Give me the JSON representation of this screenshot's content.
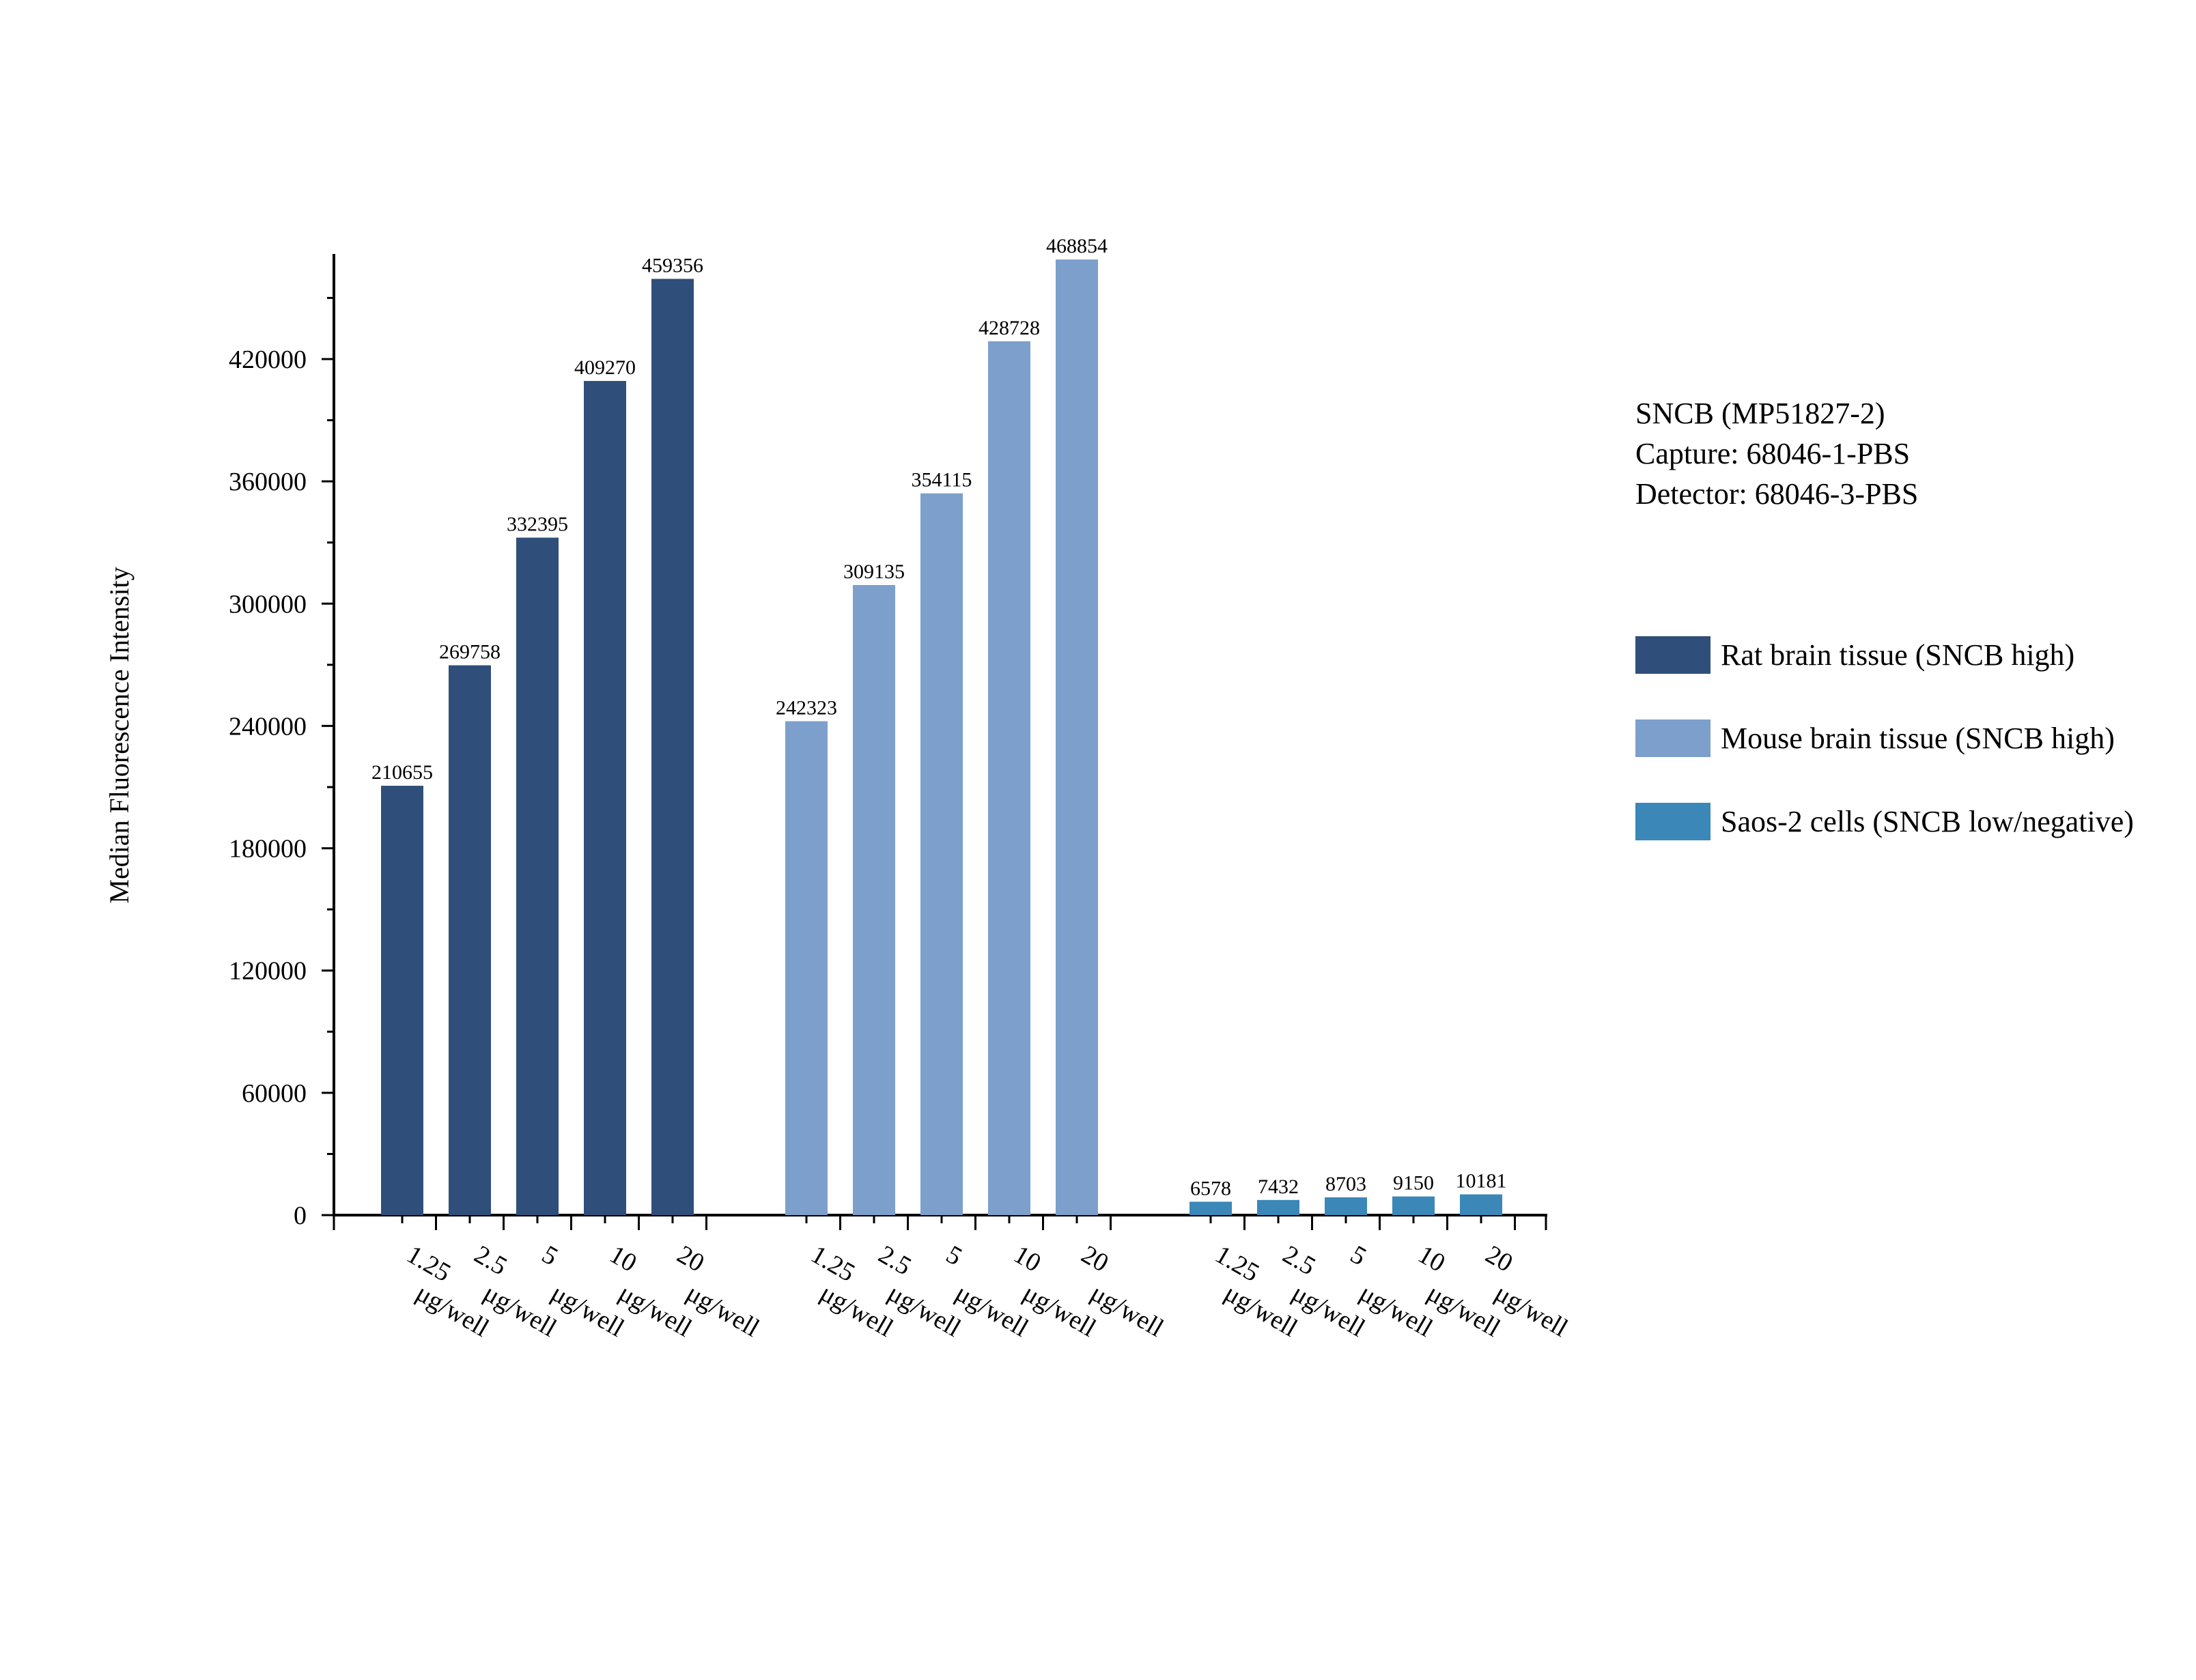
{
  "chart_data": {
    "type": "bar",
    "title": "",
    "xlabel": "",
    "ylabel": "Median Fluorescence Intensity",
    "ylim": [
      0,
      480000
    ],
    "yticks": [
      0,
      60000,
      120000,
      180000,
      240000,
      300000,
      360000,
      420000
    ],
    "grid": false,
    "legend_position": "right",
    "categories": [
      "1.25 μg/well",
      "2.5 μg/well",
      "5 μg/well",
      "10 μg/well",
      "20 μg/well"
    ],
    "series": [
      {
        "name": "Rat brain tissue (SNCB high)",
        "color": "#2f4f7a",
        "values": [
          210655,
          269758,
          332395,
          409270,
          459356
        ]
      },
      {
        "name": "Mouse brain tissue (SNCB high)",
        "color": "#7d9fcc",
        "values": [
          242323,
          309135,
          354115,
          428728,
          468854
        ]
      },
      {
        "name": "Saos-2 cells (SNCB low/negative)",
        "color": "#3a87b8",
        "values": [
          6578,
          7432,
          8703,
          9150,
          10181
        ]
      }
    ],
    "annotation": [
      "SNCB (MP51827-2)",
      "Capture: 68046-1-PBS",
      "Detector: 68046-3-PBS"
    ]
  }
}
